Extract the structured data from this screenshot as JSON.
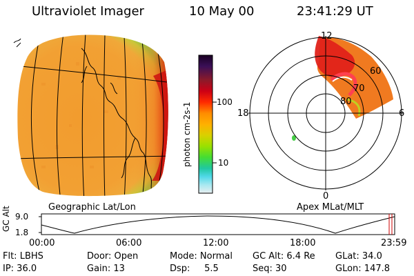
{
  "header": {
    "instrument": "Ultraviolet Imager",
    "date": "10 May 00",
    "time": "23:41:29 UT"
  },
  "panels": {
    "left_caption": "Geographic Lat/Lon",
    "right_caption": "Apex MLat/MLT"
  },
  "colorbar": {
    "unit_label": "photon cm-2s-1",
    "ticks": [
      "100",
      "10"
    ],
    "colors": [
      "#1a0022",
      "#3a0f57",
      "#8b1a2a",
      "#cc0015",
      "#ff2a00",
      "#ff8c00",
      "#ffb000",
      "#d9d000",
      "#9ae000",
      "#44dd33",
      "#20c8a0",
      "#50d8e8",
      "#a8e8f0",
      "#e8eef0"
    ]
  },
  "polar": {
    "mlt_labels": {
      "top": "12",
      "bottom": "0",
      "left": "18",
      "right": "6"
    },
    "lat_labels": [
      "60",
      "70",
      "80"
    ]
  },
  "altitude_plot": {
    "ylabel": "GC Alt",
    "yticks": [
      "9.0",
      "1.8"
    ],
    "xticks": [
      "00:00",
      "06:00",
      "12:00",
      "18:00",
      "23:59"
    ]
  },
  "status": {
    "row1": [
      "Flt: LBHS",
      "Door: Open",
      "Mode: Normal",
      "GC Alt: 6.4 Re",
      "GLat: 34.0"
    ],
    "row2": [
      "IP: 36.0",
      "Gain: 13",
      "Dsp:     5.5",
      "Seq: 30",
      "GLon: 147.8"
    ]
  },
  "colors": {
    "disk_base": "#f2a033",
    "disk_limb": "#e83a0a",
    "aurora_bright": "#d01010",
    "background": "#ffffff"
  }
}
